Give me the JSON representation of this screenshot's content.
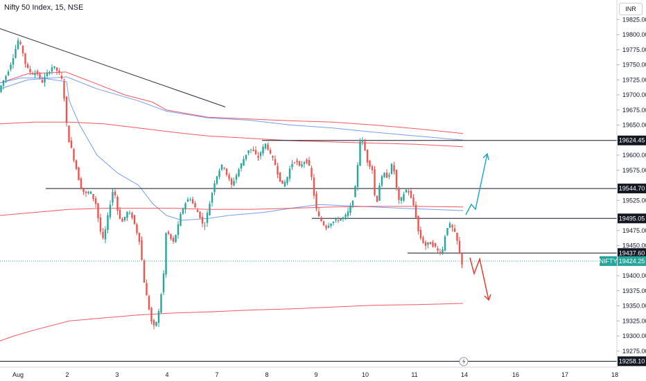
{
  "header": {
    "title": "Nifty 50 Index, 15, NSE",
    "currency_button": "INR"
  },
  "chart_data": {
    "type": "candlestick",
    "x_axis": {
      "tick_labels": [
        "Aug",
        "2",
        "3",
        "4",
        "7",
        "8",
        "9",
        "10",
        "11",
        "14",
        "16",
        "17",
        "18"
      ]
    },
    "y_axis": {
      "range": [
        19258.1,
        19835
      ],
      "tick_labels": [
        "19825.00",
        "19800.00",
        "19775.00",
        "19750.00",
        "19725.00",
        "19700.00",
        "19675.00",
        "19650.00",
        "19600.00",
        "19575.00",
        "19525.00",
        "19475.00",
        "19450.00",
        "19400.00",
        "19375.00",
        "19350.00",
        "19325.00",
        "19300.00",
        "19275.00"
      ]
    },
    "horizontal_levels": [
      {
        "label": "19624.45",
        "value": 19624.45
      },
      {
        "label": "19544.70",
        "value": 19544.7
      },
      {
        "label": "19495.05",
        "value": 19495.05
      },
      {
        "label": "19437.60",
        "value": 19437.6
      },
      {
        "label": "19258.10",
        "value": 19258.1
      }
    ],
    "last_price": {
      "symbol": "NIFTY",
      "value": 19424.25,
      "label": "19424.25"
    },
    "colors": {
      "up": "#26a69a",
      "down": "#ef5350",
      "red_ma": "#f23645",
      "blue_ma": "#5b8def",
      "arrow_up": "#22a7c4",
      "arrow_down": "#e53935"
    }
  }
}
